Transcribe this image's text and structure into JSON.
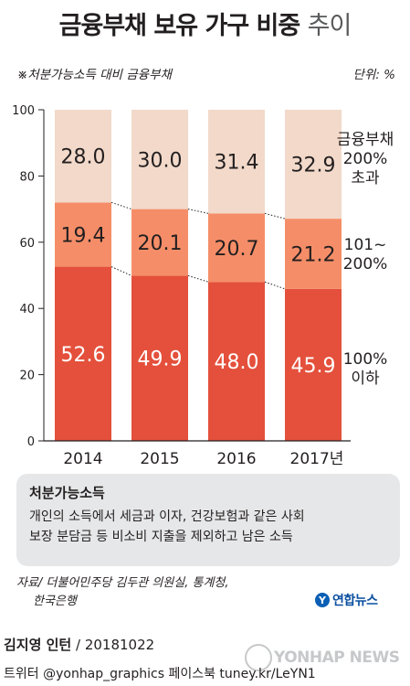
{
  "title_main": "금융부채 보유 가구 비중",
  "title_suffix": "추이",
  "subtitle": "※처분가능소득 대비 금융부채",
  "unit": "단위: %",
  "chart_data": {
    "type": "bar",
    "stacked": true,
    "categories": [
      "2014",
      "2015",
      "2016",
      "2017년"
    ],
    "ylim": [
      0,
      100
    ],
    "yticks": [
      0,
      20,
      40,
      60,
      80,
      100
    ],
    "series": [
      {
        "name": "100% 이하",
        "values": [
          52.6,
          49.9,
          48.0,
          45.9
        ],
        "color": "#e4503b",
        "label_color": "#ffffff"
      },
      {
        "name": "101~200%",
        "values": [
          19.4,
          20.1,
          20.7,
          21.2
        ],
        "color": "#f58e68",
        "label_color": "#231f20"
      },
      {
        "name": "금융부채 200% 초과",
        "values": [
          28.0,
          30.0,
          31.4,
          32.9
        ],
        "color": "#f2d9c9",
        "label_color": "#231f20"
      }
    ],
    "value_labels": [
      [
        "52.6",
        "49.9",
        "48.0",
        "45.9"
      ],
      [
        "19.4",
        "20.1",
        "20.7",
        "21.2"
      ],
      [
        "28.0",
        "30.0",
        "31.4",
        "32.9"
      ]
    ],
    "legend": [
      [
        "금융부채",
        "200%",
        "초과"
      ],
      [
        "101~",
        "200%"
      ],
      [
        "100%",
        "이하"
      ]
    ],
    "axis_color": "#231f20",
    "connector_lines": true
  },
  "note": {
    "title": "처분가능소득",
    "lines": [
      "개인의 소득에서 세금과 이자, 건강보험과 같은 사회",
      "보장 분담금 등 비소비 지출을 제외하고 남은 소득"
    ]
  },
  "source": [
    "자료/ 더불어민주당 김두관 의원실, 통계청,",
    "한국은행"
  ],
  "logo": {
    "mark": "Y",
    "text": "연합뉴스"
  },
  "byline": {
    "name": "김지영 인턴",
    "date": "/ 20181022"
  },
  "footer": "트위터 @yonhap_graphics  페이스북 tuney.kr/LeYN1",
  "watermark": "YONHAP NEWS"
}
